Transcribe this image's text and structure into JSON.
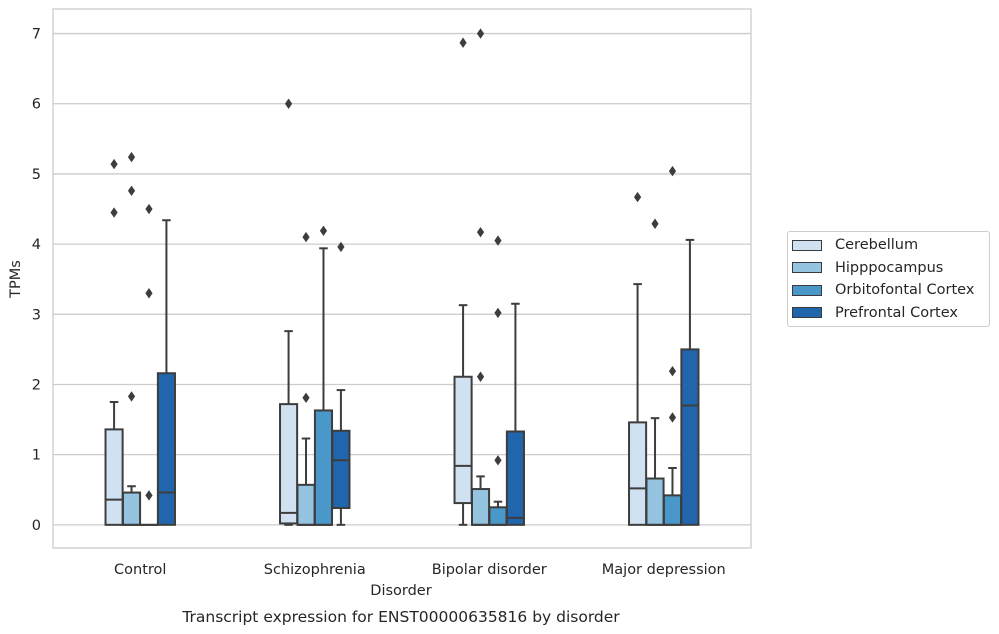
{
  "chart_data": {
    "type": "box",
    "title": "Transcript expression for ENST00000635816 by disorder",
    "xlabel": "Disorder",
    "ylabel": "TPMs",
    "ylim": [
      -0.33,
      7.35
    ],
    "yticks": [
      0,
      1,
      2,
      3,
      4,
      5,
      6,
      7
    ],
    "categories": [
      "Control",
      "Schizophrenia",
      "Bipolar disorder",
      "Major depression"
    ],
    "grid": "horizontal",
    "legend_position": "right",
    "series": [
      {
        "name": "Cerebellum",
        "color": "#d0e1f2",
        "boxes": [
          {
            "q1": 0.0,
            "median": 0.36,
            "q3": 1.36,
            "whisker_low": 0.0,
            "whisker_high": 1.75,
            "outliers": [
              4.45,
              5.14
            ]
          },
          {
            "q1": 0.02,
            "median": 0.17,
            "q3": 1.72,
            "whisker_low": 0.0,
            "whisker_high": 2.76,
            "outliers": [
              6.0
            ]
          },
          {
            "q1": 0.31,
            "median": 0.84,
            "q3": 2.11,
            "whisker_low": 0.0,
            "whisker_high": 3.13,
            "outliers": [
              6.87
            ]
          },
          {
            "q1": 0.0,
            "median": 0.52,
            "q3": 1.46,
            "whisker_low": 0.0,
            "whisker_high": 3.43,
            "outliers": [
              4.67
            ]
          }
        ]
      },
      {
        "name": "Hipppocampus",
        "color": "#94c4df",
        "boxes": [
          {
            "q1": 0.0,
            "median": 0.0,
            "q3": 0.46,
            "whisker_low": 0.0,
            "whisker_high": 0.55,
            "outliers": [
              1.83,
              4.76,
              5.24
            ]
          },
          {
            "q1": 0.0,
            "median": 0.0,
            "q3": 0.57,
            "whisker_low": 0.0,
            "whisker_high": 1.23,
            "outliers": [
              1.81,
              4.1
            ]
          },
          {
            "q1": 0.0,
            "median": 0.0,
            "q3": 0.51,
            "whisker_low": 0.0,
            "whisker_high": 0.69,
            "outliers": [
              2.11,
              4.17,
              7.0
            ]
          },
          {
            "q1": 0.0,
            "median": 0.0,
            "q3": 0.66,
            "whisker_low": 0.0,
            "whisker_high": 1.52,
            "outliers": [
              4.29
            ]
          }
        ]
      },
      {
        "name": "Orbitofontal Cortex",
        "color": "#4a98c9",
        "boxes": [
          {
            "q1": 0.0,
            "median": 0.0,
            "q3": 0.0,
            "whisker_low": 0.0,
            "whisker_high": 0.0,
            "outliers": [
              0.42,
              3.3,
              4.5
            ]
          },
          {
            "q1": 0.0,
            "median": 0.0,
            "q3": 1.63,
            "whisker_low": 0.0,
            "whisker_high": 3.94,
            "outliers": [
              4.19
            ]
          },
          {
            "q1": 0.0,
            "median": 0.0,
            "q3": 0.25,
            "whisker_low": 0.0,
            "whisker_high": 0.33,
            "outliers": [
              0.92,
              3.02,
              4.05
            ]
          },
          {
            "q1": 0.0,
            "median": 0.0,
            "q3": 0.42,
            "whisker_low": 0.0,
            "whisker_high": 0.81,
            "outliers": [
              1.53,
              2.19,
              5.04
            ]
          }
        ]
      },
      {
        "name": "Prefrontal Cortex",
        "color": "#2166ac",
        "boxes": [
          {
            "q1": 0.0,
            "median": 0.46,
            "q3": 2.16,
            "whisker_low": 0.0,
            "whisker_high": 4.34,
            "outliers": []
          },
          {
            "q1": 0.24,
            "median": 0.92,
            "q3": 1.34,
            "whisker_low": 0.0,
            "whisker_high": 1.92,
            "outliers": [
              3.96
            ]
          },
          {
            "q1": 0.0,
            "median": 0.1,
            "q3": 1.33,
            "whisker_low": 0.0,
            "whisker_high": 3.15,
            "outliers": []
          },
          {
            "q1": 0.0,
            "median": 1.7,
            "q3": 2.5,
            "whisker_low": 0.0,
            "whisker_high": 4.06,
            "outliers": []
          }
        ]
      }
    ]
  }
}
